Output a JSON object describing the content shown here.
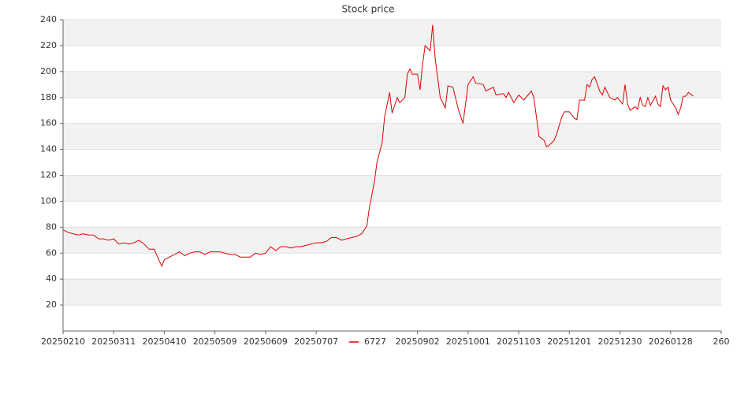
{
  "chart_data": {
    "type": "line",
    "title": "Stock price",
    "x": [
      0,
      2,
      4,
      6,
      8,
      10,
      12,
      14,
      16,
      18,
      20,
      22,
      24,
      26,
      28,
      30,
      32,
      34,
      36,
      38,
      39,
      40,
      42,
      44,
      46,
      48,
      50,
      52,
      54,
      56,
      58,
      60,
      62,
      64,
      66,
      68,
      70,
      72,
      74,
      76,
      78,
      80,
      82,
      84,
      86,
      88,
      90,
      92,
      94,
      96,
      98,
      100,
      102,
      104,
      106,
      108,
      110,
      112,
      114,
      116,
      118,
      120,
      121,
      123,
      124,
      126,
      127,
      129,
      130,
      132,
      133,
      135,
      136,
      137,
      138,
      140,
      141,
      142,
      143,
      145,
      146,
      147,
      149,
      151,
      152,
      154,
      156,
      158,
      160,
      162,
      163,
      166,
      167,
      170,
      171,
      174,
      175,
      176,
      178,
      180,
      182,
      185,
      186,
      188,
      190,
      191,
      192,
      194,
      195,
      197,
      198,
      200,
      202,
      203,
      204,
      206,
      207,
      208,
      209,
      210,
      212,
      213,
      214,
      216,
      218,
      219,
      221,
      222,
      223,
      224,
      226,
      227,
      228,
      229,
      230,
      231,
      232,
      234,
      235,
      236,
      237,
      238,
      239,
      240,
      242,
      243,
      244,
      245,
      246,
      247,
      249
    ],
    "series": [
      {
        "name": "6727",
        "color": "#e00000",
        "values": [
          78,
          76,
          75,
          74,
          75,
          74,
          74,
          71,
          71,
          70,
          71,
          67,
          68,
          67,
          68,
          70,
          67,
          63,
          63,
          54,
          50,
          55,
          57,
          59,
          61,
          58,
          60,
          61,
          61,
          59,
          61,
          61,
          61,
          60,
          59,
          59,
          57,
          57,
          57,
          60,
          59,
          60,
          65,
          62,
          65,
          65,
          64,
          65,
          65,
          66,
          67,
          68,
          68,
          69,
          72,
          72,
          70,
          71,
          72,
          73,
          75,
          81,
          95,
          115,
          130,
          145,
          165,
          184,
          168,
          180,
          176,
          180,
          198,
          202,
          198,
          198,
          186,
          205,
          220,
          216,
          236,
          210,
          180,
          172,
          189,
          188,
          172,
          160,
          190,
          196,
          191,
          190,
          185,
          188,
          182,
          183,
          180,
          184,
          176,
          182,
          178,
          185,
          180,
          150,
          147,
          142,
          143,
          147,
          152,
          165,
          169,
          169,
          164,
          163,
          178,
          178,
          190,
          188,
          194,
          196,
          185,
          182,
          188,
          180,
          178,
          180,
          175,
          190,
          175,
          170,
          173,
          171,
          180,
          174,
          173,
          180,
          174,
          181,
          175,
          173,
          189,
          186,
          188,
          178,
          172,
          167,
          172,
          181,
          181,
          184,
          181
        ]
      }
    ],
    "xlim": [
      0,
      260
    ],
    "xticks": [
      {
        "value": 0,
        "label": "20250210"
      },
      {
        "value": 20,
        "label": "20250311"
      },
      {
        "value": 40,
        "label": "20250410"
      },
      {
        "value": 60,
        "label": "20250509"
      },
      {
        "value": 80,
        "label": "20250609"
      },
      {
        "value": 100,
        "label": "20250707"
      },
      {
        "value": 140,
        "label": "20250902"
      },
      {
        "value": 160,
        "label": "20251001"
      },
      {
        "value": 180,
        "label": "20251103"
      },
      {
        "value": 200,
        "label": "20251201"
      },
      {
        "value": 220,
        "label": "20251230"
      },
      {
        "value": 240,
        "label": "20260128"
      },
      260
    ],
    "ylim": [
      0,
      240
    ],
    "yticks": [
      20,
      40,
      60,
      80,
      100,
      120,
      140,
      160,
      180,
      200,
      220,
      240
    ],
    "grid": true,
    "legend": "bottom"
  }
}
